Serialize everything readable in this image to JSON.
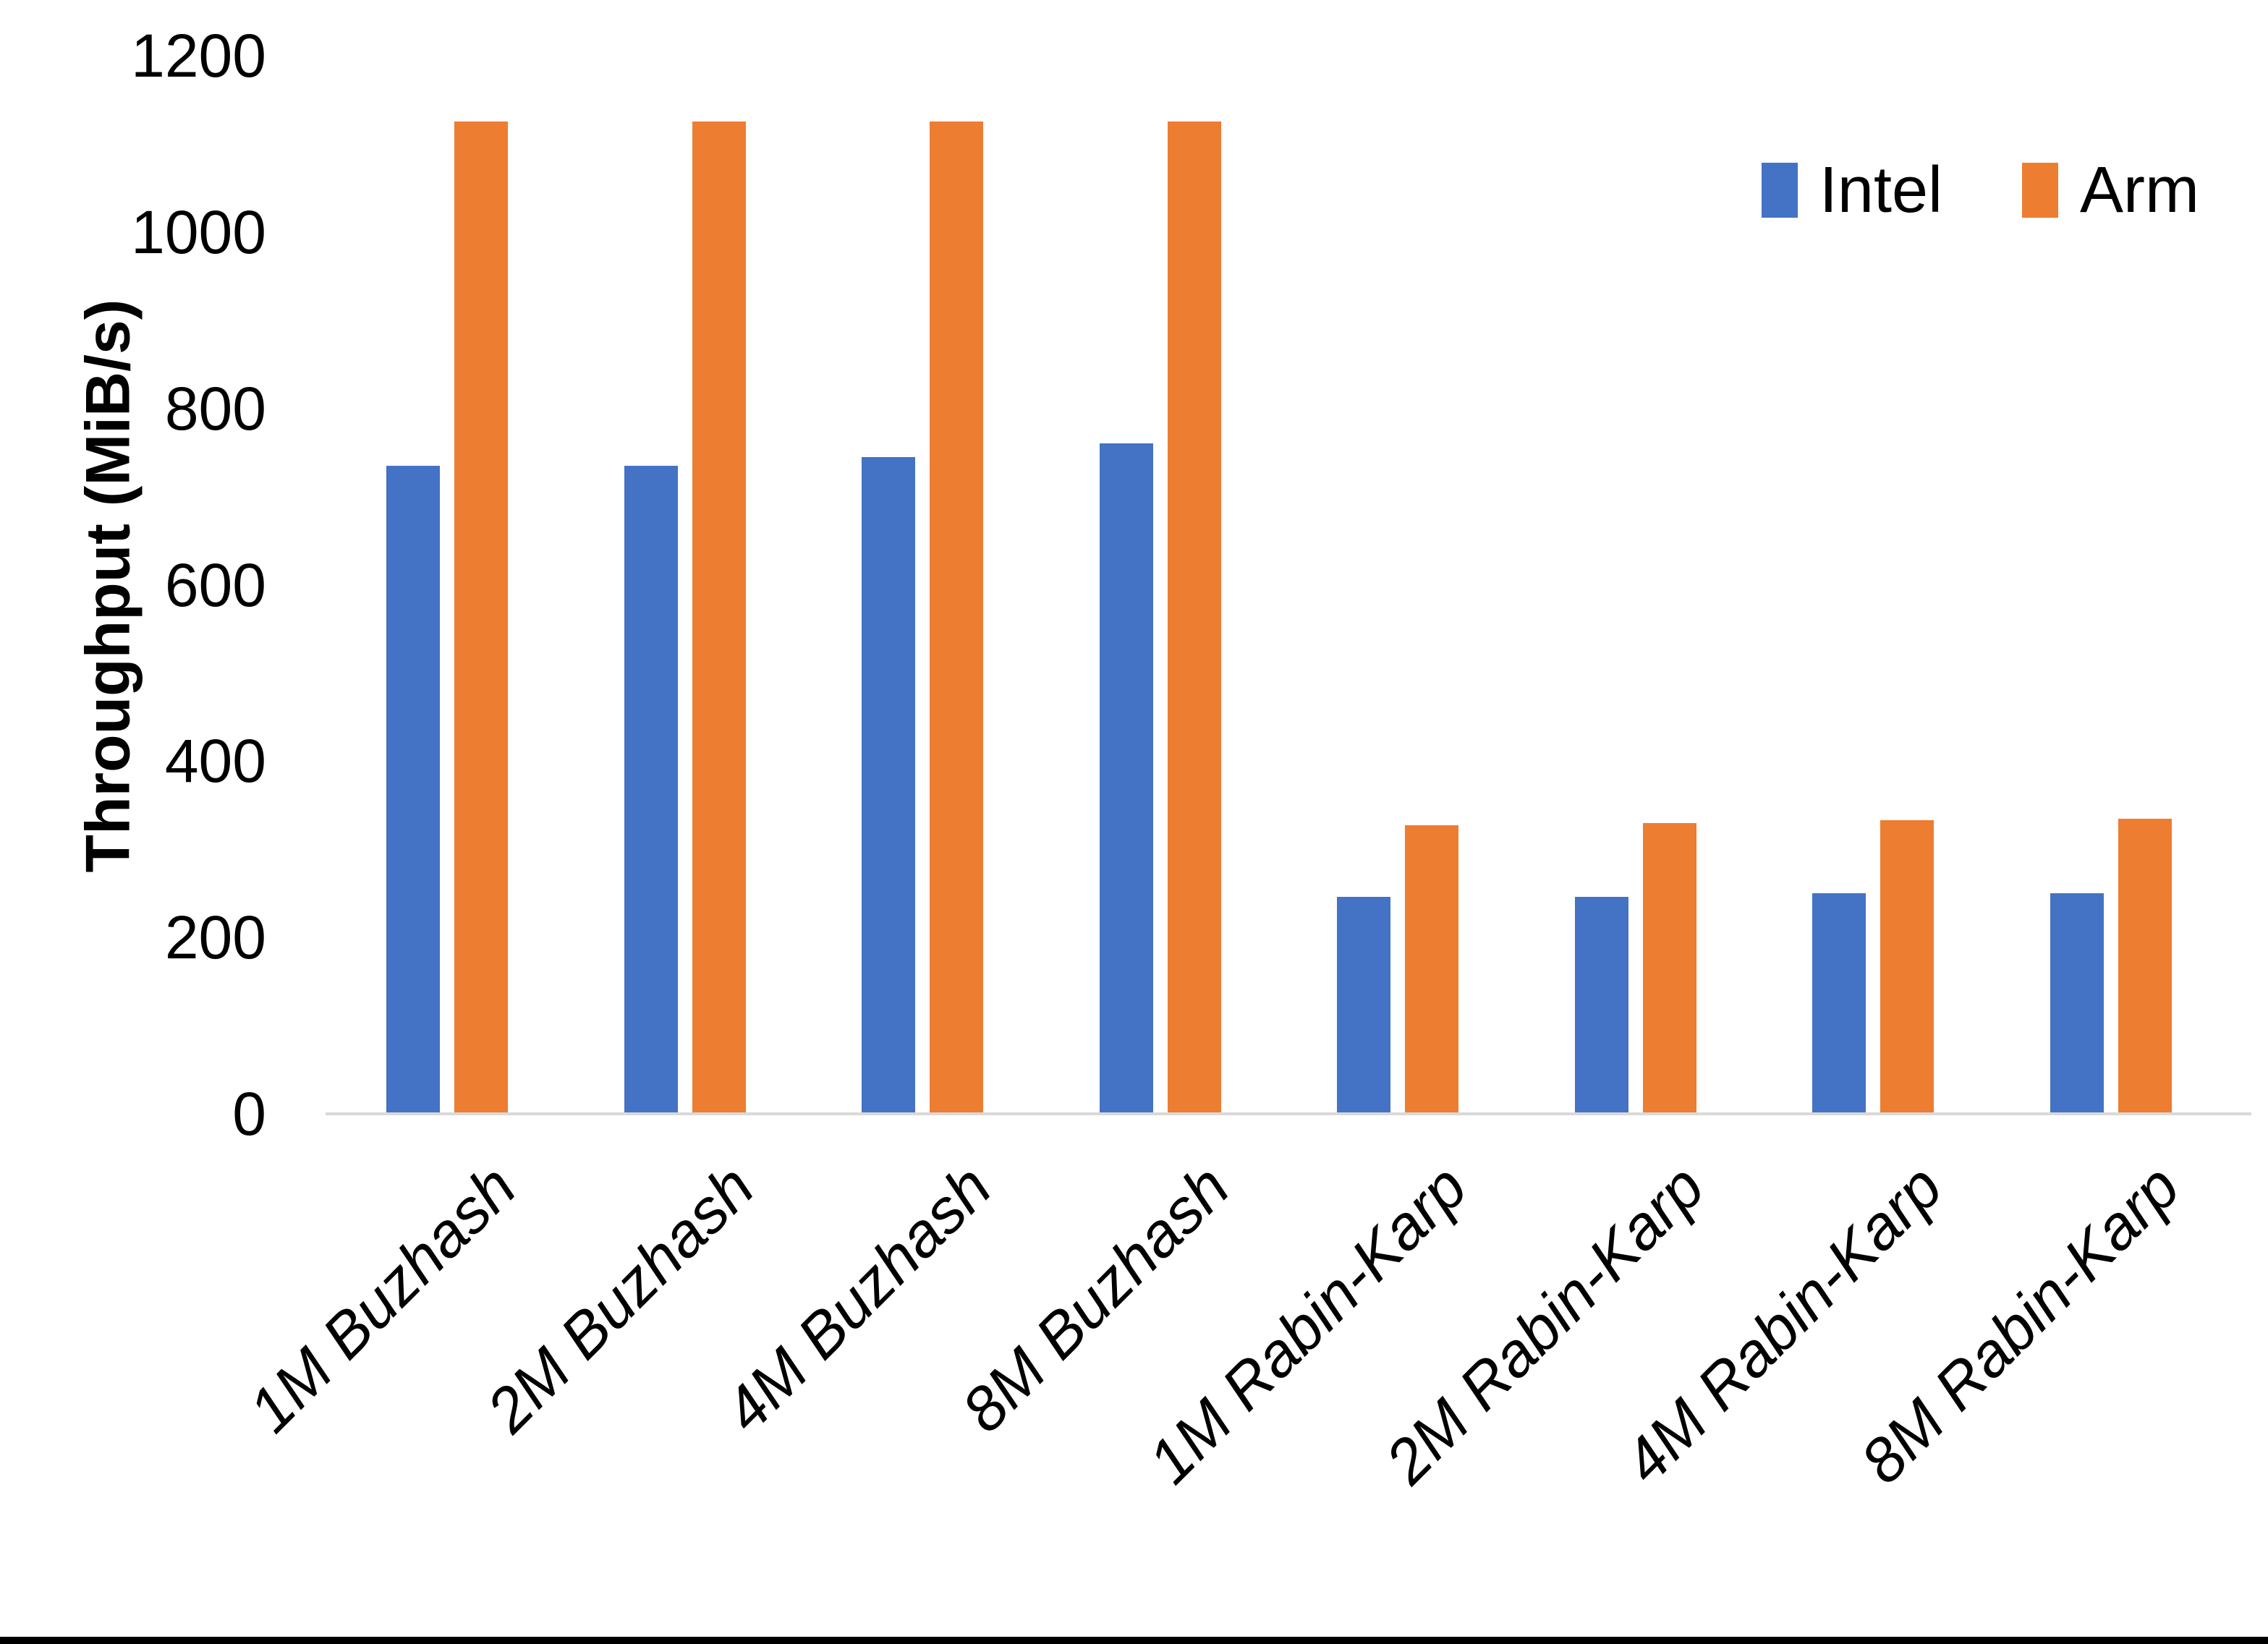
{
  "figure": {
    "background": "#FFFFFF",
    "bottom_edge_color": "#000000"
  },
  "chart_data": {
    "type": "bar",
    "title": "",
    "xlabel": "",
    "ylabel": "Throughput (MiB/s)",
    "ylim": [
      0,
      1200
    ],
    "yticks": [
      0,
      200,
      400,
      600,
      800,
      1000,
      1200
    ],
    "grid": false,
    "legend_position": "top-right",
    "categories": [
      "1M Buzhash",
      "2M Buzhash",
      "4M Buzhash",
      "8M Buzhash",
      "1M Rabin-Karp",
      "2M Rabin-Karp",
      "4M Rabin-Karp",
      "8M Rabin-Karp"
    ],
    "series": [
      {
        "name": "Intel",
        "color": "#4472C4",
        "values": [
          735,
          735,
          745,
          760,
          246,
          246,
          250,
          250
        ]
      },
      {
        "name": "Arm",
        "color": "#ED7D31",
        "values": [
          1125,
          1125,
          1125,
          1125,
          327,
          330,
          333,
          335
        ]
      }
    ],
    "axis_line_color": "#D9D9D9",
    "text_color": "#000000"
  }
}
